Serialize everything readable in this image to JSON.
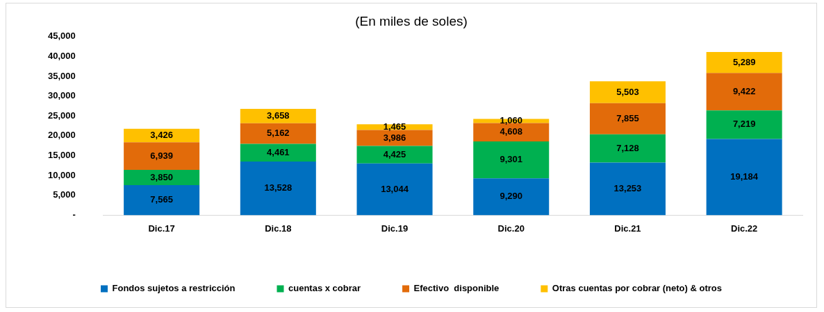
{
  "chart_data": {
    "type": "bar",
    "stacked": true,
    "title": "(En miles de soles)",
    "categories": [
      "Dic.17",
      "Dic.18",
      "Dic.19",
      "Dic.20",
      "Dic.21",
      "Dic.22"
    ],
    "series": [
      {
        "name": "Fondos sujetos a restricción",
        "color": "#0070c0",
        "values": [
          7565,
          13528,
          13044,
          9290,
          13253,
          19184
        ],
        "value_labels": [
          "7,565",
          "13,528",
          "13,044",
          "9,290",
          "13,253",
          "19,184"
        ]
      },
      {
        "name": "cuentas x cobrar",
        "color": "#00b050",
        "values": [
          3850,
          4461,
          4425,
          9301,
          7128,
          7219
        ],
        "value_labels": [
          "3,850",
          "4,461",
          "4,425",
          "9,301",
          "7,128",
          "7,219"
        ]
      },
      {
        "name": "Efectivo  disponible",
        "color": "#e26b0a",
        "values": [
          6939,
          5162,
          3986,
          4608,
          7855,
          9422
        ],
        "value_labels": [
          "6,939",
          "5,162",
          "3,986",
          "4,608",
          "7,855",
          "9,422"
        ]
      },
      {
        "name": "Otras cuentas por cobrar (neto) & otros",
        "color": "#ffc000",
        "values": [
          3426,
          3658,
          1465,
          1060,
          5503,
          5289
        ],
        "value_labels": [
          "3,426",
          "3,658",
          "1,465",
          "1,060",
          "5,503",
          "5,289"
        ]
      }
    ],
    "ylim": [
      0,
      45000
    ],
    "yticks": [
      {
        "value": 0,
        "label": "-"
      },
      {
        "value": 5000,
        "label": "5,000"
      },
      {
        "value": 10000,
        "label": "10,000"
      },
      {
        "value": 15000,
        "label": "15,000"
      },
      {
        "value": 20000,
        "label": "20,000"
      },
      {
        "value": 25000,
        "label": "25,000"
      },
      {
        "value": 30000,
        "label": "30,000"
      },
      {
        "value": 35000,
        "label": "35,000"
      },
      {
        "value": 40000,
        "label": "40,000"
      },
      {
        "value": 45000,
        "label": "45,000"
      }
    ],
    "grid": false,
    "legend": "bottom"
  }
}
